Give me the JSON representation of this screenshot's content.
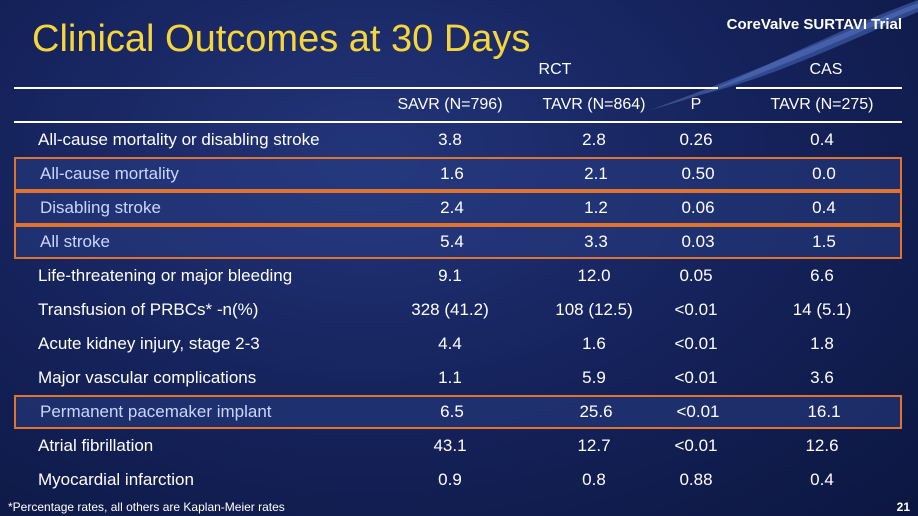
{
  "title": "Clinical Outcomes at 30 Days",
  "brand": "CoreValve SURTAVI Trial",
  "groups": {
    "rct": "RCT",
    "cas": "CAS"
  },
  "columns": [
    "SAVR (N=796)",
    "TAVR (N=864)",
    "P",
    "TAVR (N=275)"
  ],
  "rows": [
    {
      "label": "All-cause mortality or disabling stroke",
      "savr": "3.8",
      "tavr": "2.8",
      "p": "0.26",
      "cas": "0.4",
      "highlight": false
    },
    {
      "label": "All-cause mortality",
      "savr": "1.6",
      "tavr": "2.1",
      "p": "0.50",
      "cas": "0.0",
      "highlight": true
    },
    {
      "label": "Disabling stroke",
      "savr": "2.4",
      "tavr": "1.2",
      "p": "0.06",
      "cas": "0.4",
      "highlight": true
    },
    {
      "label": "All stroke",
      "savr": "5.4",
      "tavr": "3.3",
      "p": "0.03",
      "cas": "1.5",
      "highlight": true
    },
    {
      "label": "Life-threatening or major bleeding",
      "savr": "9.1",
      "tavr": "12.0",
      "p": "0.05",
      "cas": "6.6",
      "highlight": false
    },
    {
      "label": "Transfusion of PRBCs* -n(%)",
      "savr": "328 (41.2)",
      "tavr": "108 (12.5)",
      "p": "<0.01",
      "cas": "14 (5.1)",
      "highlight": false
    },
    {
      "label": "Acute kidney injury, stage 2-3",
      "savr": "4.4",
      "tavr": "1.6",
      "p": "<0.01",
      "cas": "1.8",
      "highlight": false
    },
    {
      "label": "Major vascular complications",
      "savr": "1.1",
      "tavr": "5.9",
      "p": "<0.01",
      "cas": "3.6",
      "highlight": false
    },
    {
      "label": "Permanent pacemaker implant",
      "savr": "6.5",
      "tavr": "25.6",
      "p": "<0.01",
      "cas": "16.1",
      "highlight": true
    },
    {
      "label": "Atrial fibrillation",
      "savr": "43.1",
      "tavr": "12.7",
      "p": "<0.01",
      "cas": "12.6",
      "highlight": false
    },
    {
      "label": "Myocardial infarction",
      "savr": "0.9",
      "tavr": "0.8",
      "p": "0.88",
      "cas": "0.4",
      "highlight": false
    }
  ],
  "footnote": "*Percentage rates, all others are Kaplan-Meier rates",
  "page_number": "21",
  "colors": {
    "title": "#f6d53a",
    "highlight_border": "#e0742e",
    "background": "#16245e"
  }
}
